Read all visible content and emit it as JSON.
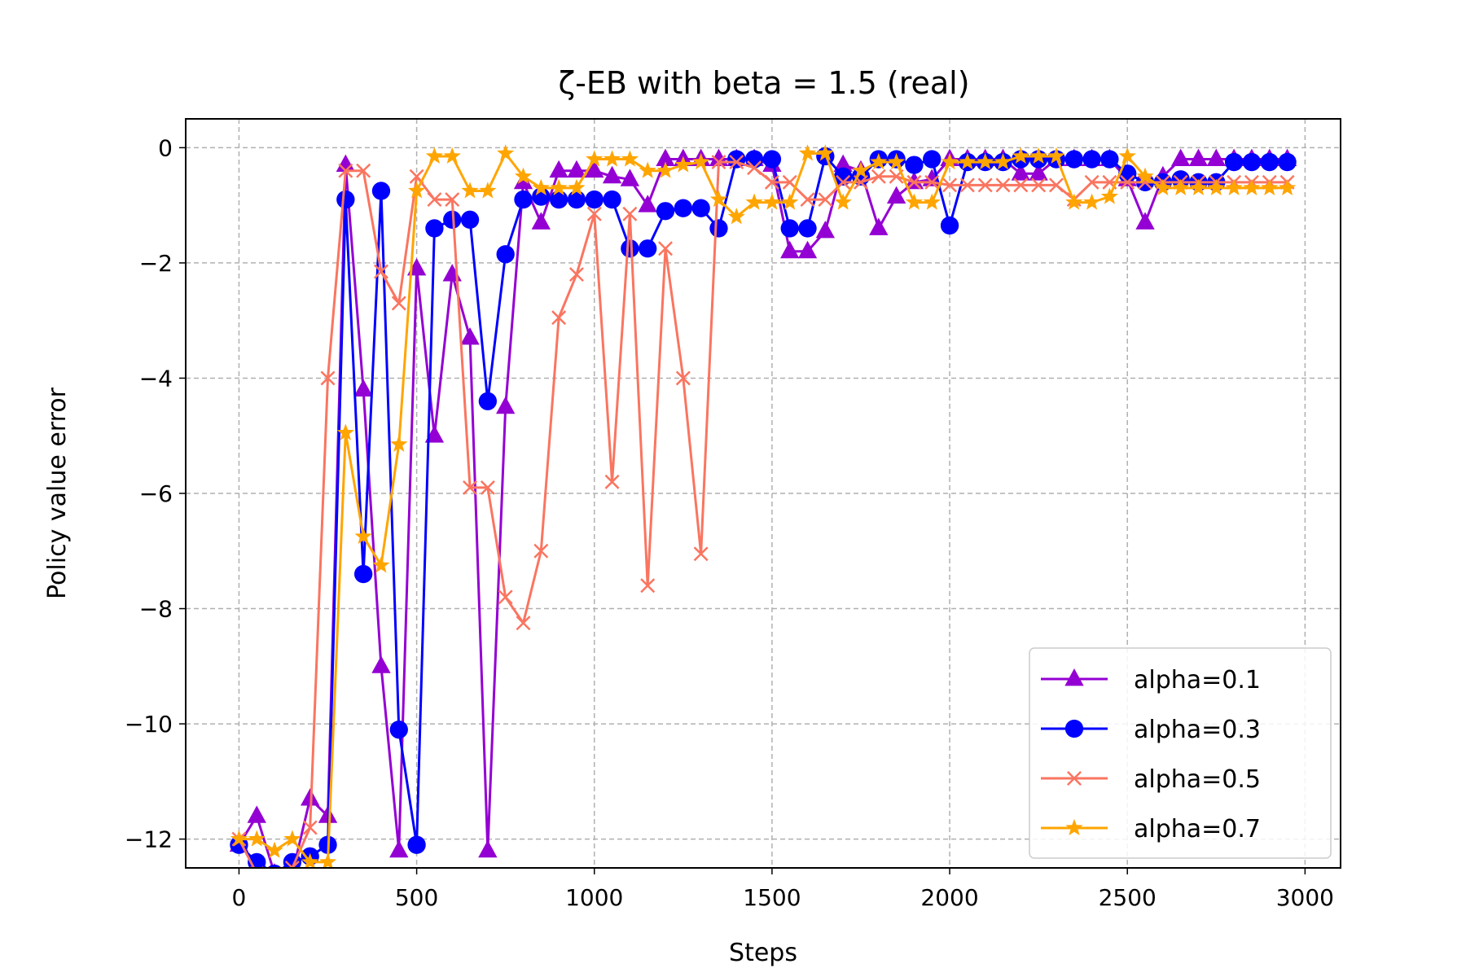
{
  "chart_data": {
    "type": "line",
    "title": "ζ-EB with beta = 1.5 (real)",
    "xlabel": "Steps",
    "ylabel": "Policy value error",
    "xlim": [
      -150,
      3100
    ],
    "ylim": [
      -12.5,
      0.5
    ],
    "xticks": [
      0,
      500,
      1000,
      1500,
      2000,
      2500,
      3000
    ],
    "yticks": [
      0,
      -2,
      -4,
      -6,
      -8,
      -10,
      -12
    ],
    "ytick_labels": [
      "0",
      "−2",
      "−4",
      "−6",
      "−8",
      "−10",
      "−12"
    ],
    "grid": true,
    "legend_position": "lower right",
    "x": [
      0,
      50,
      100,
      150,
      200,
      250,
      300,
      350,
      400,
      450,
      500,
      550,
      600,
      650,
      700,
      750,
      800,
      850,
      900,
      950,
      1000,
      1050,
      1100,
      1150,
      1200,
      1250,
      1300,
      1350,
      1400,
      1450,
      1500,
      1550,
      1600,
      1650,
      1700,
      1750,
      1800,
      1850,
      1900,
      1950,
      2000,
      2050,
      2100,
      2150,
      2200,
      2250,
      2300,
      2350,
      2400,
      2450,
      2500,
      2550,
      2600,
      2650,
      2700,
      2750,
      2800,
      2850,
      2900,
      2950
    ],
    "series": [
      {
        "name": "alpha=0.1",
        "color": "#9400D3",
        "marker": "triangle",
        "values": [
          -12.1,
          -11.6,
          -12.6,
          -12.6,
          -11.3,
          -11.6,
          -0.3,
          -4.2,
          -9.0,
          -12.2,
          -2.1,
          -5.0,
          -2.2,
          -3.3,
          -12.2,
          -4.5,
          -0.6,
          -1.3,
          -0.4,
          -0.4,
          -0.4,
          -0.5,
          -0.55,
          -1.0,
          -0.2,
          -0.2,
          -0.2,
          -0.2,
          -0.2,
          -0.2,
          -0.3,
          -1.8,
          -1.8,
          -1.45,
          -0.3,
          -0.4,
          -1.4,
          -0.85,
          -0.6,
          -0.55,
          -0.2,
          -0.2,
          -0.2,
          -0.2,
          -0.45,
          -0.45,
          -0.2,
          -0.2,
          -0.2,
          -0.2,
          -0.55,
          -1.3,
          -0.5,
          -0.2,
          -0.2,
          -0.2,
          -0.2,
          -0.2,
          -0.2,
          -0.2
        ]
      },
      {
        "name": "alpha=0.3",
        "color": "#0000FF",
        "marker": "circle",
        "values": [
          -12.1,
          -12.4,
          -12.6,
          -12.4,
          -12.3,
          -12.1,
          -0.9,
          -7.4,
          -0.75,
          -10.1,
          -12.1,
          -1.4,
          -1.25,
          -1.25,
          -4.4,
          -1.85,
          -0.9,
          -0.85,
          -0.9,
          -0.9,
          -0.9,
          -0.9,
          -1.75,
          -1.75,
          -1.1,
          -1.05,
          -1.05,
          -1.4,
          -0.2,
          -0.2,
          -0.2,
          -1.4,
          -1.4,
          -0.15,
          -0.5,
          -0.5,
          -0.2,
          -0.2,
          -0.3,
          -0.2,
          -1.35,
          -0.25,
          -0.25,
          -0.25,
          -0.2,
          -0.2,
          -0.2,
          -0.2,
          -0.2,
          -0.2,
          -0.45,
          -0.6,
          -0.6,
          -0.55,
          -0.6,
          -0.6,
          -0.25,
          -0.25,
          -0.25,
          -0.25
        ]
      },
      {
        "name": "alpha=0.5",
        "color": "#FA7560",
        "marker": "x",
        "values": [
          -12.0,
          -12.6,
          -12.6,
          -12.5,
          -11.8,
          -4.0,
          -0.4,
          -0.4,
          -2.15,
          -2.7,
          -0.5,
          -0.9,
          -0.9,
          -5.9,
          -5.9,
          -7.8,
          -8.25,
          -7.0,
          -2.95,
          -2.2,
          -1.15,
          -5.8,
          -1.15,
          -7.6,
          -1.75,
          -4.0,
          -7.05,
          -0.25,
          -0.25,
          -0.35,
          -0.6,
          -0.6,
          -0.9,
          -0.9,
          -0.6,
          -0.6,
          -0.5,
          -0.5,
          -0.6,
          -0.6,
          -0.65,
          -0.65,
          -0.65,
          -0.65,
          -0.65,
          -0.65,
          -0.65,
          -0.9,
          -0.6,
          -0.6,
          -0.6,
          -0.6,
          -0.6,
          -0.6,
          -0.6,
          -0.6,
          -0.6,
          -0.6,
          -0.6,
          -0.6
        ]
      },
      {
        "name": "alpha=0.7",
        "color": "#FFA500",
        "marker": "star",
        "values": [
          -12.0,
          -12.0,
          -12.2,
          -12.0,
          -12.4,
          -12.4,
          -4.95,
          -6.75,
          -7.25,
          -5.15,
          -0.75,
          -0.15,
          -0.15,
          -0.75,
          -0.75,
          -0.1,
          -0.5,
          -0.7,
          -0.7,
          -0.7,
          -0.2,
          -0.2,
          -0.2,
          -0.4,
          -0.4,
          -0.3,
          -0.25,
          -0.9,
          -1.2,
          -0.95,
          -0.95,
          -0.95,
          -0.1,
          -0.1,
          -0.95,
          -0.4,
          -0.25,
          -0.25,
          -0.95,
          -0.95,
          -0.25,
          -0.25,
          -0.25,
          -0.25,
          -0.15,
          -0.15,
          -0.15,
          -0.95,
          -0.95,
          -0.85,
          -0.15,
          -0.5,
          -0.7,
          -0.7,
          -0.7,
          -0.7,
          -0.7,
          -0.7,
          -0.7,
          -0.7
        ]
      }
    ]
  }
}
